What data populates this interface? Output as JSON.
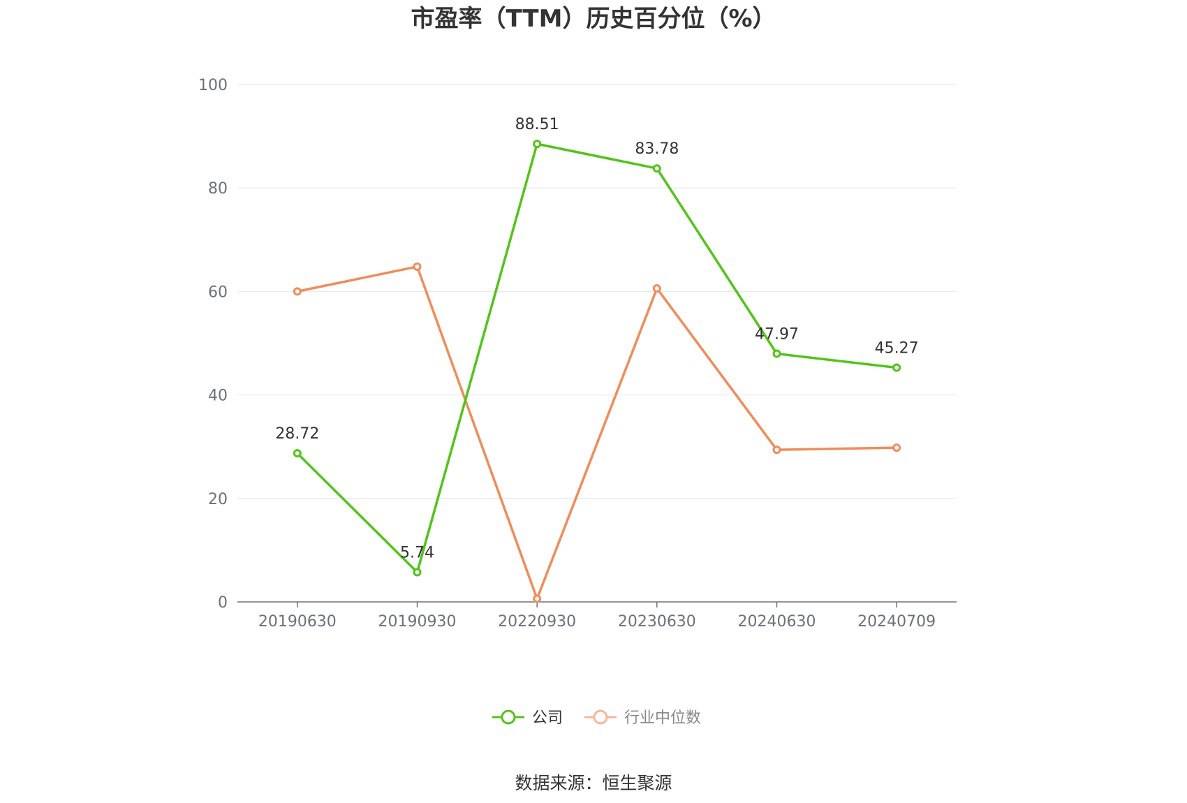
{
  "chart_data": {
    "type": "line",
    "title": "市盈率（TTM）历史百分位（%）",
    "categories": [
      "20190630",
      "20190930",
      "20220930",
      "20230630",
      "20240630",
      "20240709"
    ],
    "series": [
      {
        "name": "公司",
        "color": "#52c41a",
        "values": [
          28.72,
          5.74,
          88.51,
          83.78,
          47.97,
          45.27
        ],
        "data_labels": [
          "28.72",
          "5.74",
          "88.51",
          "83.78",
          "47.97",
          "45.27"
        ]
      },
      {
        "name": "行业中位数",
        "color": "#f08c5a",
        "values": [
          60.0,
          64.8,
          0.6,
          60.6,
          29.4,
          29.8
        ]
      }
    ],
    "ylim": [
      0,
      100
    ],
    "yticks": [
      "0",
      "20",
      "40",
      "60",
      "80",
      "100"
    ],
    "grid": true,
    "legend": "bottom-center",
    "source": "数据来源：恒生聚源"
  }
}
